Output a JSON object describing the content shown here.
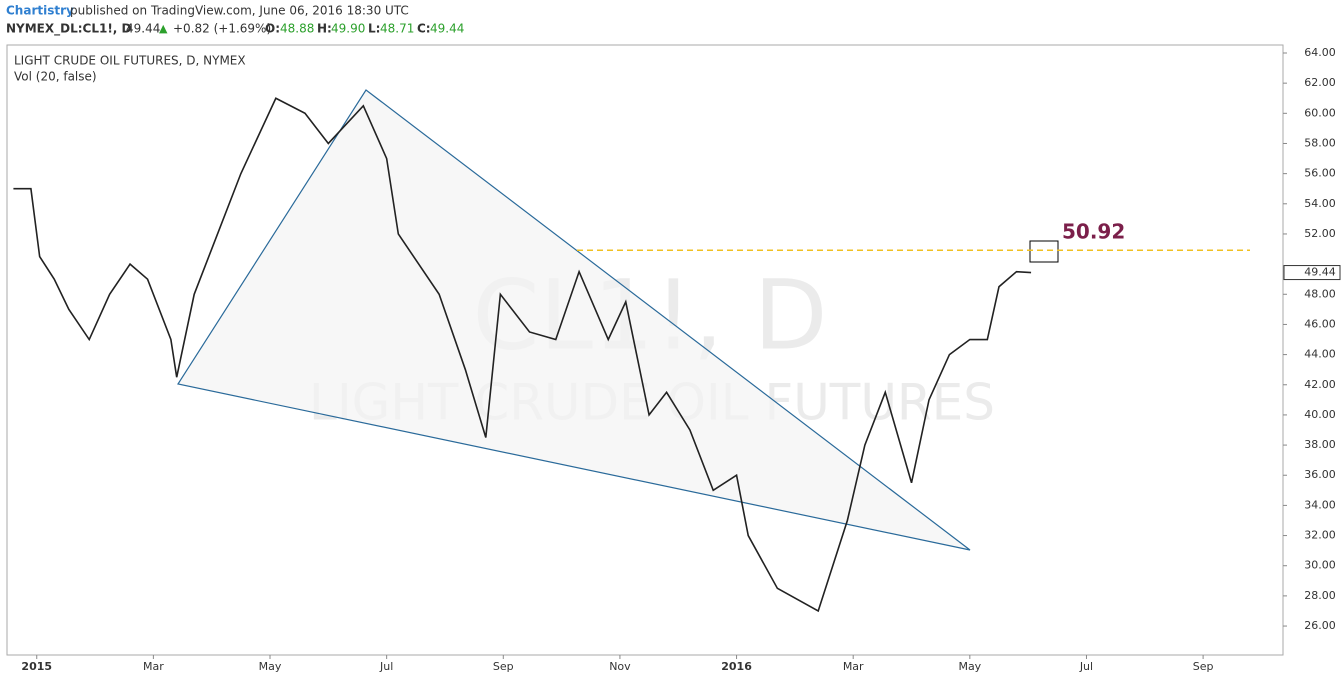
{
  "header": {
    "author": "Chartistry",
    "published": "published on TradingView.com, June 06, 2016 18:30 UTC",
    "symbol": "NYMEX_DL:CL1!, D",
    "last": "49.44",
    "change_arrow": "▲",
    "change": "+0.82 (+1.69%)",
    "open_label": "O:",
    "open": "48.88",
    "high_label": "H:",
    "high": "49.90",
    "low_label": "L:",
    "low": "48.71",
    "close_label": "C:",
    "close": "49.44"
  },
  "chart_data": {
    "type": "line",
    "title": "LIGHT CRUDE OIL FUTURES, D, NYMEX",
    "subtitle": "Vol (20, false)",
    "watermark": "CL1!, D",
    "watermark_name": "LIGHT CRUDE OIL FUTURES",
    "x": [
      -0.4,
      -0.1,
      0.05,
      0.3,
      0.55,
      0.9,
      1.25,
      1.6,
      1.9,
      2.3,
      2.4,
      2.7,
      3.0,
      3.5,
      4.1,
      4.6,
      5.0,
      5.6,
      6.0,
      6.2,
      6.9,
      7.35,
      7.7,
      7.95,
      8.45,
      8.9,
      9.3,
      9.8,
      10.1,
      10.5,
      10.8,
      11.2,
      11.6,
      12.0,
      12.2,
      12.7,
      13.4,
      13.9,
      14.2,
      14.55,
      15.0,
      15.3,
      15.65,
      16.0,
      16.3,
      16.5,
      16.8,
      17.05
    ],
    "values": [
      55,
      55,
      50.5,
      49,
      47,
      45,
      48,
      50,
      49,
      45,
      42.5,
      48,
      51,
      56,
      61,
      60,
      58,
      60.5,
      57,
      52,
      48,
      43,
      38.5,
      48,
      45.5,
      45,
      49.5,
      45,
      47.5,
      40,
      41.5,
      39,
      35,
      36,
      32,
      28.5,
      27,
      33,
      38,
      41.5,
      35.5,
      41,
      44,
      45,
      45,
      48.5,
      49.5,
      49.44
    ],
    "color": "#222222",
    "last_value": 49.44,
    "last_label": "49.44",
    "annotation": {
      "value": 50.92,
      "label": "50.92",
      "color": "#7b1f4a"
    },
    "xlim": [
      -0.51,
      21.37
    ],
    "ylim": [
      24.08,
      64.53
    ],
    "xticks": [
      {
        "value": 0,
        "label": "2015"
      },
      {
        "value": 2,
        "label": "Mar"
      },
      {
        "value": 4,
        "label": "May"
      },
      {
        "value": 6,
        "label": "Jul"
      },
      {
        "value": 8,
        "label": "Sep"
      },
      {
        "value": 10,
        "label": "Nov"
      },
      {
        "value": 12,
        "label": "2016"
      },
      {
        "value": 14,
        "label": "Mar"
      },
      {
        "value": 16,
        "label": "May"
      },
      {
        "value": 18,
        "label": "Jul"
      },
      {
        "value": 20,
        "label": "Sep"
      }
    ],
    "yticks": [
      {
        "value": 26,
        "label": "26.00"
      },
      {
        "value": 28,
        "label": "28.00"
      },
      {
        "value": 30,
        "label": "30.00"
      },
      {
        "value": 32,
        "label": "32.00"
      },
      {
        "value": 34,
        "label": "34.00"
      },
      {
        "value": 36,
        "label": "36.00"
      },
      {
        "value": 38,
        "label": "38.00"
      },
      {
        "value": 40,
        "label": "40.00"
      },
      {
        "value": 42,
        "label": "42.00"
      },
      {
        "value": 44,
        "label": "44.00"
      },
      {
        "value": 46,
        "label": "46.00"
      },
      {
        "value": 48,
        "label": "48.00"
      },
      {
        "value": 52,
        "label": "52.00"
      },
      {
        "value": 54,
        "label": "54.00"
      },
      {
        "value": 56,
        "label": "56.00"
      },
      {
        "value": 58,
        "label": "58.00"
      },
      {
        "value": 60,
        "label": "60.00"
      },
      {
        "value": 62,
        "label": "62.00"
      },
      {
        "value": 64,
        "label": "64.00"
      }
    ],
    "grid": false
  }
}
